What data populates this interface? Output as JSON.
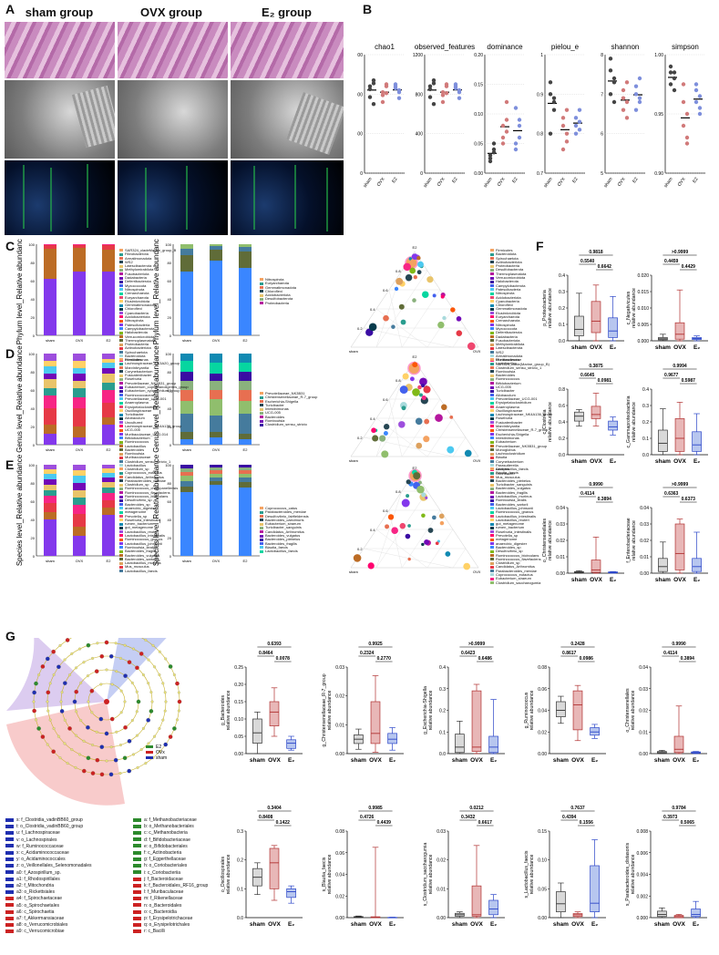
{
  "panel_letters": {
    "A": "A",
    "B": "B",
    "C": "C",
    "D": "D",
    "E": "E",
    "F": "F",
    "G": "G"
  },
  "panelA": {
    "headers": [
      "sham group",
      "OVX group",
      "E₂ group"
    ]
  },
  "panelB": {
    "plots": [
      {
        "title": "chao1",
        "yticks": [
          "1200",
          "800",
          "400",
          "0"
        ],
        "ylim": [
          0,
          1200
        ]
      },
      {
        "title": "observed_features",
        "yticks": [
          "1200",
          "800",
          "400",
          "0"
        ],
        "ylim": [
          0,
          1200
        ]
      },
      {
        "title": "dominance",
        "yticks": [
          "0.20",
          "0.15",
          "0.10",
          "0.05",
          "0.00"
        ],
        "ylim": [
          0,
          0.2
        ]
      },
      {
        "title": "pielou_e",
        "yticks": [
          "1",
          "0.9",
          "0.8",
          "0.7"
        ],
        "ylim": [
          0.7,
          1
        ]
      },
      {
        "title": "shannon",
        "yticks": [
          "8",
          "7",
          "6",
          "5"
        ],
        "ylim": [
          5,
          8
        ]
      },
      {
        "title": "simpson",
        "yticks": [
          "1.00",
          "0.95",
          "0.90"
        ],
        "ylim": [
          0.9,
          1.0
        ]
      }
    ],
    "groups": [
      "sham",
      "OVX",
      "E2"
    ]
  },
  "rows": {
    "C": {
      "ylabel_left": "Phylum level_Relative abundance",
      "ylabel_right": "Phylum level_Relative abundance"
    },
    "D": {
      "ylabel_left": "Genus level_Relative abundance",
      "ylabel_right": "Genus level_Relative abundance"
    },
    "E": {
      "ylabel_left": "Species level_Relative abundance",
      "ylabel_right": "Species level_Relative abundance"
    }
  },
  "bar_groups": [
    "sham",
    "OVX",
    "E2"
  ],
  "bar_yticks": [
    "100",
    "80",
    "60",
    "40",
    "20",
    "0"
  ],
  "ternary": {
    "top": "E2",
    "left": "sham",
    "right": "OVX",
    "ticks": [
      "0.8",
      "0.6",
      "0.4",
      "0.2"
    ]
  },
  "legends": {
    "C_left": [
      "SAR324_cladeMarine_group_B",
      "Fibrobacterota",
      "Armatimonadota",
      "WS2",
      "Latescibacterota",
      "Methylomirabilota",
      "Fusobacteriota",
      "Dadabacteria",
      "Deferribacterota",
      "Myxococcota",
      "Nitrospinota",
      "Crenarchaeota",
      "Euryarchaeota",
      "Elusimicrobiota",
      "Gemmatimonadota",
      "Chloroflexi",
      "Cyanobacteria",
      "Acidobacteriota",
      "Nitrospirota",
      "Patescibacteria",
      "Campylobacterota",
      "Halobacterota",
      "Verrucomicrobiota",
      "Thermoplasmatota",
      "Proteobacteria",
      "Actinobacteriota",
      "Spirochaetota",
      "Bacteroidota",
      "Firmicutes"
    ],
    "C_right": [
      "Nitrospirota",
      "Euryarchaeota",
      "Gemmatimonadota",
      "Chloroflexi",
      "Acidobacteriota",
      "Desulfobacterota",
      "Proteobacteria"
    ],
    "C_tern": [
      "Firmicutes",
      "Bacteroidota",
      "Spirochaetota",
      "Actinobacteriota",
      "Proteobacteria",
      "Desulfobacterota",
      "Thermoplasmatota",
      "Verrucomicrobiota",
      "Halobacterota",
      "Campylobacterota",
      "Patescibacteria",
      "Nitrospirota",
      "Acidobacteriota",
      "Cyanobacteria",
      "Chloroflexi",
      "Gemmatimonadota",
      "Elusimicrobiota",
      "Euryarchaeota",
      "Crenarchaeota",
      "Nitrospinota",
      "Myxococcota",
      "Deferribacterota",
      "Dadabacteria",
      "Fusobacteriota",
      "Methylomirabilota",
      "Latescibacterota",
      "WS2",
      "Armatimonadota",
      "Fibrobacterota",
      "SAR324_clade(Marine_group_B)"
    ],
    "D_left": [
      "Intestinimonas",
      "Lachnospiraceae_NK3A20_group",
      "Marvinbryantia",
      "Corynebacterium",
      "Fusicatenibacter",
      "Roseburia",
      "Prevotellaceae_NK3B31_group",
      "Eubacterium_coprostanoligenes_group",
      "Eubacterium_xylanophilum_group",
      "Ruminococcaceae",
      "Prevotellaceae_UCG-001",
      "Anaeroplasma",
      "Erysipelatoclostridium",
      "Oscillospiraceae",
      "Turicibacter",
      "Allobaculum",
      "Uncultured",
      "Lachnospiraceae_NK4A136_group",
      "UCG-005",
      "Muribaculaceae_UCG-014",
      "Bifidobacterium",
      "Ruminococcus",
      "Lactobacillus",
      "Bacteroides",
      "Romboutsia",
      "Muribaculaceae",
      "Clostridium_sensu_stricto_1",
      "Lactobacillus"
    ],
    "D_right": [
      "Prevotellaceae_NK3B31",
      "Christensenellaceae_R-7_group",
      "Escherichia-Shigella",
      "Turicibacter",
      "Intestinimonas",
      "UCG-005",
      "Bacteroides",
      "Romboutsia",
      "Clostridium_sensu_stricto"
    ],
    "D_tern": [
      "Muribaculaceae",
      "Lactobacillus",
      "Clostridium_sensu_stricto_1",
      "Romboutsia",
      "Bacteroides",
      "Ruminococcus",
      "Bifidobacterium",
      "UCG-005",
      "Turicibacter",
      "Allobaculum",
      "Prevotellaceae_UCG-001",
      "Erysipelatoclostridium",
      "Anaeroplasma",
      "Oscillospiraceae",
      "Lachnospiraceae_NK4A136_group",
      "Roseburia",
      "Fusicatenibacter",
      "Marvinbryantia",
      "Christensenellaceae_R-7_group",
      "Escherichia-Shigella",
      "Intestinimonas",
      "Eubacterium",
      "Prevotellaceae_NK3B31_group",
      "Monoglobus",
      "Lachnoclostridium",
      "Blautia",
      "Corynebacterium",
      "Parasutterella",
      "Alistipes",
      "Odoribacter"
    ],
    "E_left": [
      "Clostridium_sp",
      "Coprococcus_eutactus",
      "Candidatus_Arthromitus",
      "Parabacteroides_merdae",
      "Clostridium_sp",
      "Ruminococcus_champanellensis",
      "Ruminococcus_flavefaciens",
      "Ruminococcus_bicirculans",
      "Desulfovibrio_sp",
      "Bacteroides_sp",
      "anaerobic_digester",
      "metagenome",
      "Prevotella_sp",
      "Roseburia_intestinalis",
      "rumen_bacterium",
      "gut_metagenome",
      "Lactobacillus_reuteri",
      "Lactobacillus_intestinalis",
      "Ruminococcus_gnavus",
      "Lactobacillus_johnsonii",
      "Romboutsia_ilealis",
      "Bacteroides_fragilis",
      "Bacteroides_vulgatus",
      "Bacteroides_sartorii",
      "Lactobacillus_murinus",
      "Mus_musculus",
      "Lactobacillus_faecis"
    ],
    "E_right": [
      "Coprococcus_catus",
      "Parabacteroides_merdae",
      "Desulfovibrio_fairfieldensis",
      "Bacteroides_caecimuris",
      "Eubacterium_siraeum",
      "Turicibacter_sanguinis",
      "Candidatus_Arthromitus",
      "Bacteroides_vulgatus",
      "Bacteroides_plebeius",
      "Bacteroides_fragilis",
      "Blautia_faecis",
      "Lactobacillus_faecis"
    ],
    "E_tern": [
      "Lactobacillus_faecis",
      "Blautia_faecis",
      "Mus_musculus",
      "Bacteroides_plebeius",
      "Turicibacter_sanguinis",
      "Bacteroides_vulgatus",
      "Bacteroides_fragilis",
      "Lactobacillus_murinus",
      "Romboutsia_ilealis",
      "Bacteroides_sartorii",
      "Lactobacillus_johnsonii",
      "Ruminococcus_gnavus",
      "Lactobacillus_intestinalis",
      "Lactobacillus_reuteri",
      "gut_metagenome",
      "rumen_bacterium",
      "Roseburia_intestinalis",
      "Prevotella_sp",
      "metagenome",
      "anaerobic_digester",
      "Bacteroides_sp",
      "Desulfovibrio_sp",
      "Ruminococcus_bicirculans",
      "Ruminococcus_flavefaciens",
      "Clostridium_sp",
      "Candidatus_Arthromitus",
      "Parabacteroides_merdae",
      "Coprococcus_eutactus",
      "Eubacterium_siraeum",
      "Clostridium_saccharogumia"
    ]
  },
  "boxgroups": [
    "sham",
    "OVX",
    "E₂"
  ],
  "boxplots_F": [
    {
      "ylabel": "p_Proteobacteria\nrelative abundance",
      "yticks": [
        "0.4",
        "0.3",
        "0.2",
        "0.1",
        "0.0"
      ],
      "ymax": 0.4,
      "p_top": "0.9818",
      "p_left": "0.5540",
      "p_right": "0.6642",
      "stats": [
        [
          0.0,
          0.03,
          0.07,
          0.15,
          0.29
        ],
        [
          0.0,
          0.05,
          0.12,
          0.24,
          0.34
        ],
        [
          0.0,
          0.02,
          0.06,
          0.14,
          0.27
        ]
      ]
    },
    {
      "ylabel": "c_Negativicutes\nrelative abundance",
      "yticks": [
        "0.020",
        "0.015",
        "0.010",
        "0.005",
        "0.000"
      ],
      "ymax": 0.02,
      "p_top": ">0.9999",
      "p_left": "0.4459",
      "p_right": "0.4429",
      "stats": [
        [
          0.0,
          0.0003,
          0.0006,
          0.001,
          0.002
        ],
        [
          0.0,
          0.0005,
          0.002,
          0.0055,
          0.0155
        ],
        [
          0.0,
          0.0004,
          0.0007,
          0.001,
          0.0015
        ]
      ]
    },
    {
      "ylabel": "c_Clostridia\nrelative abundance",
      "yticks": [
        "0.8",
        "0.6",
        "0.4",
        "0.2",
        "0.0"
      ],
      "ymax": 0.8,
      "p_top": "0.3875",
      "p_left": "0.6645",
      "p_right": "0.0981",
      "stats": [
        [
          0.35,
          0.41,
          0.47,
          0.52,
          0.55
        ],
        [
          0.35,
          0.44,
          0.49,
          0.59,
          0.75
        ],
        [
          0.24,
          0.3,
          0.34,
          0.41,
          0.46
        ]
      ]
    },
    {
      "ylabel": "c_Gammaproteobacteria\nrelative abundance",
      "yticks": [
        "0.4",
        "0.3",
        "0.2",
        "0.1",
        "0.0"
      ],
      "ymax": 0.4,
      "p_top": "0.9994",
      "p_left": "0.9677",
      "p_right": "0.5987",
      "stats": [
        [
          0.0,
          0.02,
          0.07,
          0.15,
          0.28
        ],
        [
          0.0,
          0.02,
          0.1,
          0.22,
          0.32
        ],
        [
          0.0,
          0.02,
          0.06,
          0.14,
          0.25
        ]
      ]
    },
    {
      "ylabel": "o_Christensenellales\nrelative abundance",
      "yticks": [
        "0.04",
        "0.03",
        "0.02",
        "0.01",
        "0.00"
      ],
      "ymax": 0.04,
      "p_top": "0.9990",
      "p_left": "0.4114",
      "p_right": "0.3894",
      "stats": [
        [
          0.0,
          0.0002,
          0.0005,
          0.001,
          0.0015
        ],
        [
          0.0,
          0.0005,
          0.002,
          0.008,
          0.022
        ],
        [
          0.0,
          0.0002,
          0.0004,
          0.0008,
          0.001
        ]
      ]
    },
    {
      "ylabel": "f_Enterobacteriaceae\nrelative abundance",
      "yticks": [
        "0.04",
        "0.03",
        "0.02",
        "0.01",
        "0.00"
      ],
      "ymax": 0.04,
      "p_top": ">0.9999",
      "p_left": "0.6363",
      "p_right": "0.6373",
      "stats": [
        [
          0.0,
          0.001,
          0.004,
          0.009,
          0.019
        ],
        [
          0.0,
          0.002,
          0.012,
          0.03,
          0.033
        ],
        [
          0.0,
          0.001,
          0.004,
          0.009,
          0.025
        ]
      ]
    }
  ],
  "boxplots_G": [
    {
      "ylabel": "g_Bacteroides\nrelative abundance",
      "yticks": [
        "0.25",
        "0.20",
        "0.15",
        "0.10",
        "0.05",
        "0.00"
      ],
      "ymax": 0.25,
      "p_top": "0.6393",
      "p_left": "0.8464",
      "p_right": "0.0078",
      "stats": [
        [
          0.0,
          0.03,
          0.06,
          0.1,
          0.12
        ],
        [
          0.05,
          0.08,
          0.12,
          0.15,
          0.19
        ],
        [
          0.01,
          0.015,
          0.03,
          0.04,
          0.05
        ]
      ]
    },
    {
      "ylabel": "g_Christensenellaceae_R-7_group\nrelative abundance",
      "yticks": [
        "0.03",
        "0.02",
        "0.01",
        "0.00"
      ],
      "ymax": 0.03,
      "p_top": "0.9925",
      "p_left": "0.2324",
      "p_right": "0.2770",
      "stats": [
        [
          0.0015,
          0.0035,
          0.005,
          0.0065,
          0.0085
        ],
        [
          0.0005,
          0.0035,
          0.007,
          0.018,
          0.027
        ],
        [
          0.0012,
          0.0035,
          0.005,
          0.007,
          0.009
        ]
      ]
    },
    {
      "ylabel": "g_Escherichia-Shigella\nrelative abundance",
      "yticks": [
        "0.4",
        "0.3",
        "0.2",
        "0.1",
        "0.0"
      ],
      "ymax": 0.4,
      "p_top": ">0.9999",
      "p_left": "0.6423",
      "p_right": "0.6486",
      "stats": [
        [
          0.0,
          0.005,
          0.03,
          0.09,
          0.15
        ],
        [
          0.0,
          0.01,
          0.03,
          0.29,
          0.32
        ],
        [
          0.0,
          0.005,
          0.03,
          0.08,
          0.25
        ]
      ]
    },
    {
      "ylabel": "g_Ruminococcus\nrelative abundance",
      "yticks": [
        "0.08",
        "0.06",
        "0.04",
        "0.02",
        "0.00"
      ],
      "ymax": 0.08,
      "p_top": "0.2428",
      "p_left": "0.8617",
      "p_right": "0.0986",
      "stats": [
        [
          0.028,
          0.034,
          0.04,
          0.048,
          0.053
        ],
        [
          0.012,
          0.022,
          0.045,
          0.058,
          0.063
        ],
        [
          0.014,
          0.017,
          0.02,
          0.024,
          0.027
        ]
      ]
    },
    {
      "ylabel": "o_Christensenellales\nrelative abundance",
      "yticks": [
        "0.04",
        "0.03",
        "0.02",
        "0.01",
        "0.00"
      ],
      "ymax": 0.04,
      "p_top": "0.9990",
      "p_left": "0.4114",
      "p_right": "0.3894",
      "stats": [
        [
          0.0,
          0.0002,
          0.0005,
          0.001,
          0.0015
        ],
        [
          0.0,
          0.0005,
          0.002,
          0.008,
          0.022
        ],
        [
          0.0,
          0.0002,
          0.0004,
          0.0008,
          0.001
        ]
      ]
    },
    {
      "ylabel": "o_Oscillospirales\nrelative abundance",
      "yticks": [
        "0.3",
        "0.2",
        "0.1",
        "0.0"
      ],
      "ymax": 0.3,
      "p_top": "0.3404",
      "p_left": "0.8408",
      "p_right": "0.1422",
      "stats": [
        [
          0.08,
          0.11,
          0.14,
          0.17,
          0.19
        ],
        [
          0.06,
          0.1,
          0.19,
          0.24,
          0.25
        ],
        [
          0.05,
          0.07,
          0.09,
          0.1,
          0.11
        ]
      ]
    },
    {
      "ylabel": "s_Blautia_faecis\nrelative abundance",
      "yticks": [
        "0.08",
        "0.06",
        "0.04",
        "0.02",
        "0.00"
      ],
      "ymax": 0.08,
      "p_top": "0.9985",
      "p_left": "0.4726",
      "p_right": "0.4439",
      "stats": [
        [
          0.0,
          0.0003,
          0.0006,
          0.001,
          0.0015
        ],
        [
          0.0,
          0.0,
          0.0003,
          0.0008,
          0.065
        ],
        [
          0.0,
          0.0,
          0.0001,
          0.0002,
          0.0004
        ]
      ]
    },
    {
      "ylabel": "s_Clostridium_saccharogumia\nrelative abundance",
      "yticks": [
        "0.03",
        "0.02",
        "0.01",
        "0.00"
      ],
      "ymax": 0.03,
      "p_top": "0.0212",
      "p_left": "0.3432",
      "p_right": "0.6617",
      "stats": [
        [
          0.0,
          0.0005,
          0.001,
          0.0015,
          0.002
        ],
        [
          0.0,
          0.0005,
          0.001,
          0.011,
          0.025
        ],
        [
          0.0,
          0.001,
          0.003,
          0.006,
          0.008
        ]
      ]
    },
    {
      "ylabel": "s_Lactobacillus_faecis\nrelative abundance",
      "yticks": [
        "0.15",
        "0.10",
        "0.05",
        "0.00"
      ],
      "ymax": 0.15,
      "p_top": "0.7637",
      "p_left": "0.4394",
      "p_right": "0.1556",
      "stats": [
        [
          0.0,
          0.01,
          0.024,
          0.045,
          0.06
        ],
        [
          0.0,
          0.002,
          0.005,
          0.007,
          0.01
        ],
        [
          0.0,
          0.01,
          0.025,
          0.09,
          0.135
        ]
      ]
    },
    {
      "ylabel": "s_Parabacteroides_distasonis\nrelative abundance",
      "yticks": [
        "0.008",
        "0.006",
        "0.004",
        "0.002",
        "0.000"
      ],
      "ymax": 0.008,
      "p_top": "0.9784",
      "p_left": "0.3973",
      "p_right": "0.5065",
      "stats": [
        [
          0.0,
          0.0001,
          0.0003,
          0.0006,
          0.0009
        ],
        [
          0.0,
          0.0,
          0.0001,
          0.0002,
          0.0003
        ],
        [
          0.0,
          0.0001,
          0.0003,
          0.0008,
          0.0015
        ]
      ]
    }
  ],
  "lefse_legend_title": {
    "e2": "E2",
    "ovx": "OVx",
    "sham": "sham"
  },
  "lefse_list_left": [
    "s: f_Clostridia_vadinBB60_group",
    "t: o_Clostridia_vadinBB60_group",
    "u: f_Lachnospiraceae",
    "v: o_Lachnospirales",
    "w: f_Ruminococcaceae",
    "x: c_Acidaminococcaceae",
    "y: o_Acidaminococcales",
    "z: o_Veillonellales_Selenomonadales",
    "a0: f_Azospirillum_sp.",
    "a1: f_Rhodospirillales",
    "a2: f_Mitochondria",
    "a3: o_Rickettsiales",
    "a4: f_Spirochaetaceae",
    "a5: o_Spirochaetales",
    "a6: c_Spirochaetia",
    "a7: f_Akkermansiaceae",
    "a8: o_Verrucomicrobiales",
    "a9: c_Verrucomicrobiae"
  ],
  "lefse_list_right": [
    "a: f_Methanobacteriaceae",
    "b: o_Methanobacteriales",
    "c: c_Methanobacteria",
    "d: f_Bifidobacteriaceae",
    "e: o_Bifidobacteriales",
    "f: c_Actinobacteria",
    "g: f_Eggerthellaceae",
    "h: o_Coriobacteriales",
    "i: c_Coriobacteriia",
    "j: f_Bacteroidaceae",
    "k: f_Bacteroidales_RF16_group",
    "l: f_Muribaculaceae",
    "m: f_Rikenellaceae",
    "n: o_Bacteroidales",
    "o: c_Bacteroidia",
    "p: f_Erysipelotrichaceae",
    "q: o_Erysipelotrichales",
    "r: c_Bacilli"
  ],
  "colors": {
    "sham": "#444444",
    "ovx": "#b03030",
    "e2": "#2a45c8",
    "box_sham": "#d9d9d9",
    "box_ovx": "#e8b7b7",
    "box_e2": "#b7c6ef"
  }
}
